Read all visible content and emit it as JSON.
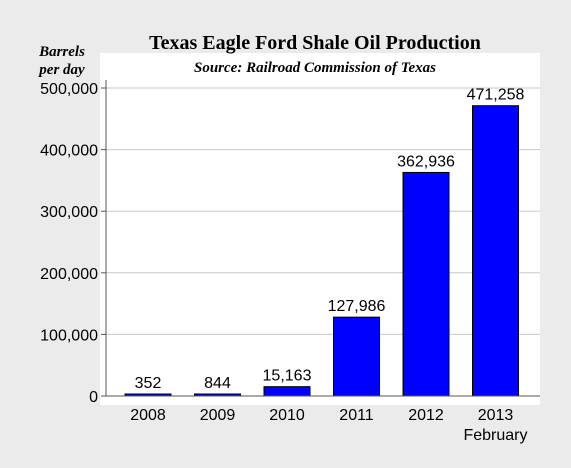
{
  "chart_data": {
    "type": "bar",
    "title": "Texas Eagle Ford Shale Oil Production",
    "subtitle": "Source: Railroad Commission of Texas",
    "ylabel": [
      "Barrels",
      "per day"
    ],
    "xlabel": "",
    "ylim": [
      0,
      500000
    ],
    "yticks": [
      {
        "value": 0,
        "label": "0"
      },
      {
        "value": 100000,
        "label": "100,000"
      },
      {
        "value": 200000,
        "label": "200,000"
      },
      {
        "value": 300000,
        "label": "300,000"
      },
      {
        "value": 400000,
        "label": "400,000"
      },
      {
        "value": 500000,
        "label": "500,000"
      }
    ],
    "categories": [
      "2008",
      "2009",
      "2010",
      "2011",
      "2012",
      "2013"
    ],
    "category_sublabels": [
      "",
      "",
      "",
      "",
      "",
      "February"
    ],
    "values": [
      352,
      844,
      15163,
      127986,
      362936,
      471258
    ],
    "value_labels": [
      "352",
      "844",
      "15,163",
      "127,986",
      "362,936",
      "471,258"
    ],
    "grid": true,
    "colors": {
      "bar": "#0000ff",
      "background": "#ebebeb",
      "plot_background": "#ffffff"
    }
  }
}
